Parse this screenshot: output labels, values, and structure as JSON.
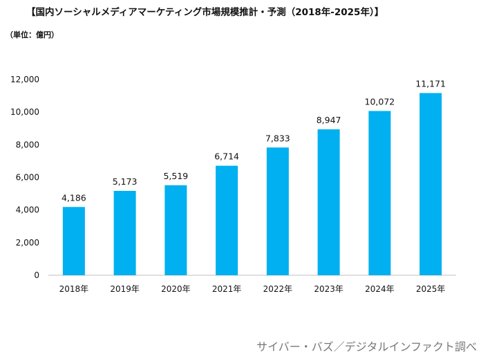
{
  "header": {
    "title": "【国内ソーシャルメディアマーケティング市場規模推計・予測（2018年-2025年）】",
    "unit": "（単位：億円）"
  },
  "footer": {
    "source": "サイバー・バズ／デジタルインファクト調べ"
  },
  "chart_data": {
    "type": "bar",
    "categories": [
      "2018年",
      "2019年",
      "2020年",
      "2021年",
      "2022年",
      "2023年",
      "2024年",
      "2025年"
    ],
    "values": [
      4186,
      5173,
      5519,
      6714,
      7833,
      8947,
      10072,
      11171
    ],
    "value_labels": [
      "4,186",
      "5,173",
      "5,519",
      "6,714",
      "7,833",
      "8,947",
      "10,072",
      "11,171"
    ],
    "ylim": [
      0,
      12000
    ],
    "yticks": [
      0,
      2000,
      4000,
      6000,
      8000,
      10000,
      12000
    ],
    "ytick_labels": [
      "0",
      "2,000",
      "4,000",
      "6,000",
      "8,000",
      "10,000",
      "12,000"
    ],
    "grid": false,
    "bar_color": "#00B0F0",
    "axis_color": "#bfbfbf"
  }
}
